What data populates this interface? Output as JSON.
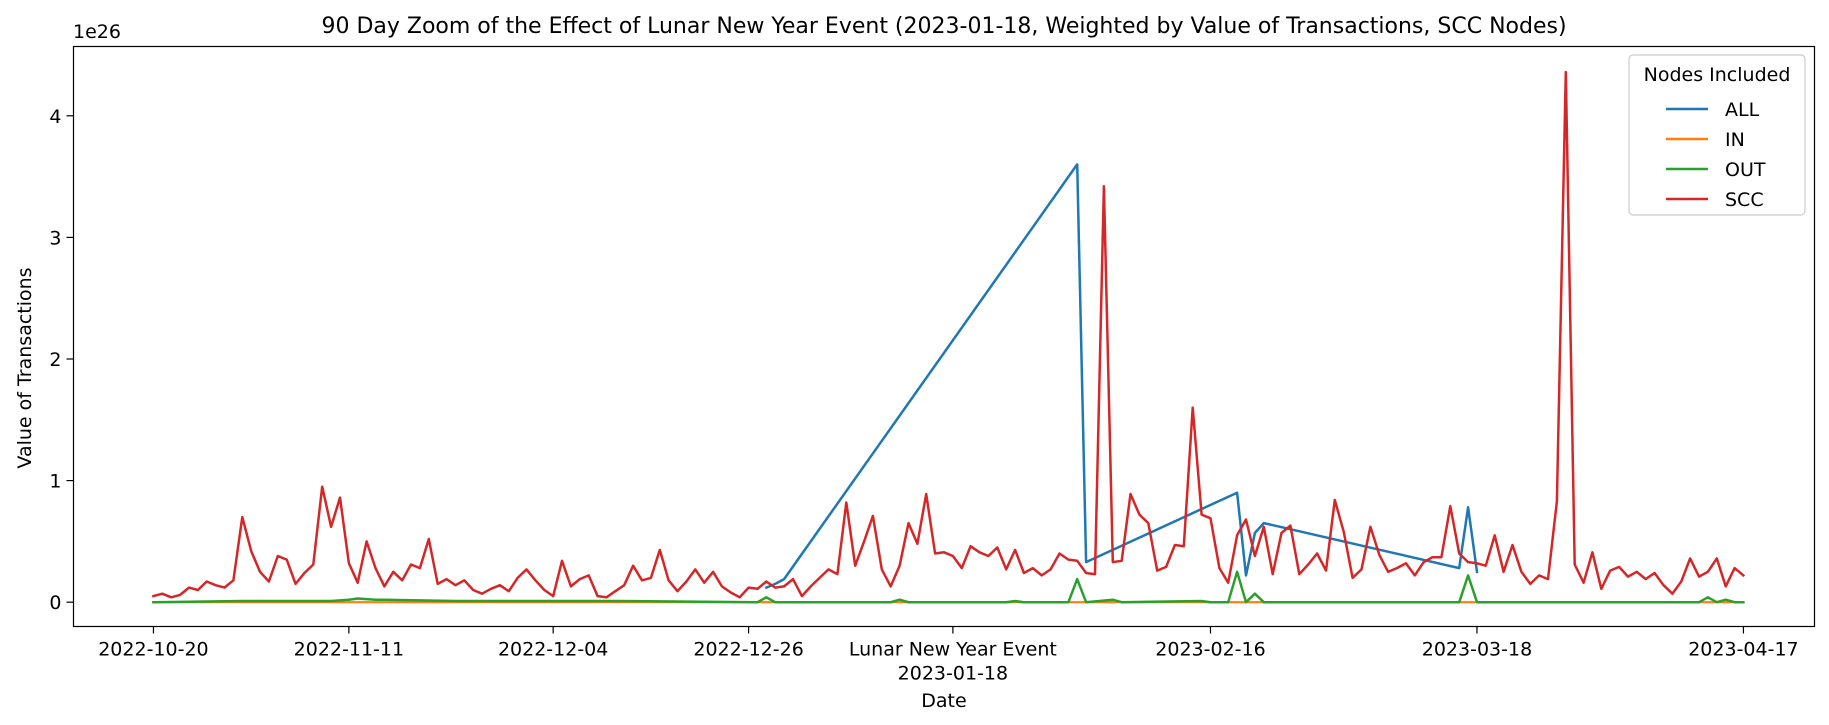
{
  "chart_data": {
    "type": "line",
    "title": "90 Day Zoom of the Effect of Lunar New Year Event (2023-01-18, Weighted by Value of Transactions, SCC Nodes)",
    "xlabel": "Date",
    "ylabel": "Value of Transactions",
    "y_offset_label": "1e26",
    "y_scale": 1e+26,
    "ylim": [
      -0.2,
      4.57
    ],
    "xlim": [
      "2022-10-11",
      "2023-04-25"
    ],
    "x_start": "2022-10-20",
    "x_ticks": [
      {
        "date": "2022-10-20",
        "label": "2022-10-20"
      },
      {
        "date": "2022-11-11",
        "label": "2022-11-11"
      },
      {
        "date": "2022-12-04",
        "label": "2022-12-04"
      },
      {
        "date": "2022-12-26",
        "label": "2022-12-26"
      },
      {
        "date": "2023-01-18",
        "label": "Lunar New Year Event",
        "label2": "2023-01-18"
      },
      {
        "date": "2023-02-16",
        "label": "2023-02-16"
      },
      {
        "date": "2023-03-18",
        "label": "2023-03-18"
      },
      {
        "date": "2023-04-17",
        "label": "2023-04-17"
      }
    ],
    "y_ticks": [
      0,
      1,
      2,
      3,
      4
    ],
    "legend": {
      "title": "Nodes Included",
      "position": "top-right"
    },
    "series": [
      {
        "name": "ALL",
        "color": "#1f77b4",
        "sparse": true,
        "width": 2.5,
        "points": [
          [
            69,
            0.12
          ],
          [
            70,
            0.15
          ],
          [
            71,
            0.19
          ],
          [
            104,
            3.6
          ],
          [
            105,
            0.33
          ],
          [
            122,
            0.9
          ],
          [
            123,
            0.22
          ],
          [
            124,
            0.57
          ],
          [
            125,
            0.65
          ],
          [
            147,
            0.28
          ],
          [
            148,
            0.78
          ],
          [
            149,
            0.25
          ]
        ]
      },
      {
        "name": "IN",
        "color": "#ff7f0e",
        "sparse": true,
        "width": 2.2,
        "points": [
          [
            0,
            0
          ],
          [
            179,
            0
          ]
        ]
      },
      {
        "name": "OUT",
        "color": "#2ca02c",
        "sparse": true,
        "width": 2.5,
        "points": [
          [
            0,
            0.0
          ],
          [
            10,
            0.01
          ],
          [
            20,
            0.01
          ],
          [
            22,
            0.02
          ],
          [
            23,
            0.03
          ],
          [
            25,
            0.02
          ],
          [
            26,
            0.02
          ],
          [
            34,
            0.01
          ],
          [
            52,
            0.01
          ],
          [
            68,
            0.0
          ],
          [
            69,
            0.04
          ],
          [
            70,
            0.0
          ],
          [
            83,
            0.0
          ],
          [
            84,
            0.02
          ],
          [
            85,
            0.0
          ],
          [
            96,
            0.0
          ],
          [
            97,
            0.01
          ],
          [
            98,
            0.0
          ],
          [
            103,
            0.0
          ],
          [
            104,
            0.19
          ],
          [
            105,
            0.0
          ],
          [
            108,
            0.02
          ],
          [
            109,
            0.0
          ],
          [
            118,
            0.01
          ],
          [
            119,
            0.0
          ],
          [
            121,
            0.0
          ],
          [
            122,
            0.25
          ],
          [
            123,
            0.0
          ],
          [
            124,
            0.07
          ],
          [
            125,
            0.0
          ],
          [
            147,
            0.0
          ],
          [
            148,
            0.22
          ],
          [
            149,
            0.0
          ],
          [
            174,
            0.0
          ],
          [
            175,
            0.04
          ],
          [
            176,
            0.0
          ],
          [
            177,
            0.02
          ],
          [
            178,
            0.0
          ],
          [
            179,
            0.0
          ]
        ]
      },
      {
        "name": "SCC",
        "color": "#d62728",
        "sparse": false,
        "width": 2.5,
        "values": [
          0.05,
          0.07,
          0.04,
          0.06,
          0.12,
          0.1,
          0.17,
          0.14,
          0.12,
          0.18,
          0.7,
          0.42,
          0.25,
          0.17,
          0.38,
          0.35,
          0.15,
          0.24,
          0.31,
          0.95,
          0.62,
          0.86,
          0.32,
          0.16,
          0.5,
          0.28,
          0.13,
          0.25,
          0.18,
          0.31,
          0.28,
          0.52,
          0.15,
          0.19,
          0.14,
          0.18,
          0.1,
          0.07,
          0.11,
          0.14,
          0.09,
          0.2,
          0.27,
          0.18,
          0.1,
          0.05,
          0.34,
          0.13,
          0.19,
          0.22,
          0.05,
          0.04,
          0.09,
          0.14,
          0.3,
          0.18,
          0.2,
          0.43,
          0.18,
          0.09,
          0.17,
          0.27,
          0.16,
          0.25,
          0.13,
          0.08,
          0.04,
          0.12,
          0.11,
          0.17,
          0.12,
          0.13,
          0.19,
          0.05,
          0.13,
          0.2,
          0.27,
          0.23,
          0.82,
          0.3,
          0.5,
          0.71,
          0.27,
          0.13,
          0.3,
          0.65,
          0.48,
          0.89,
          0.4,
          0.41,
          0.38,
          0.28,
          0.46,
          0.41,
          0.38,
          0.45,
          0.27,
          0.43,
          0.24,
          0.28,
          0.22,
          0.27,
          0.4,
          0.35,
          0.34,
          0.24,
          0.23,
          3.42,
          0.33,
          0.34,
          0.89,
          0.72,
          0.65,
          0.26,
          0.29,
          0.47,
          0.46,
          1.6,
          0.72,
          0.69,
          0.28,
          0.16,
          0.55,
          0.68,
          0.38,
          0.62,
          0.23,
          0.57,
          0.63,
          0.23,
          0.31,
          0.4,
          0.26,
          0.84,
          0.58,
          0.2,
          0.27,
          0.62,
          0.39,
          0.25,
          0.28,
          0.32,
          0.22,
          0.33,
          0.37,
          0.37,
          0.79,
          0.4,
          0.33,
          0.32,
          0.3,
          0.55,
          0.25,
          0.47,
          0.25,
          0.15,
          0.22,
          0.19,
          0.83,
          4.36,
          0.31,
          0.16,
          0.41,
          0.11,
          0.26,
          0.29,
          0.21,
          0.25,
          0.19,
          0.24,
          0.14,
          0.07,
          0.17,
          0.36,
          0.21,
          0.25,
          0.36,
          0.13,
          0.28,
          0.22
        ]
      }
    ]
  }
}
